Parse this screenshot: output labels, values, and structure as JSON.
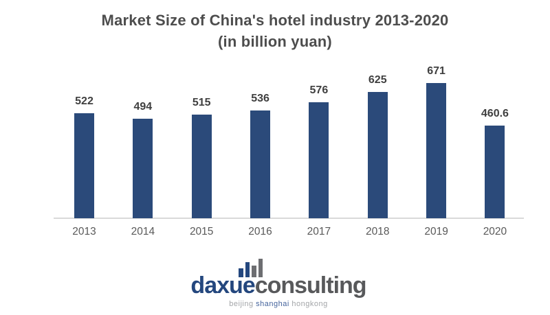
{
  "title": {
    "line1": "Market Size of China's hotel industry 2013-2020",
    "line2": "(in billion yuan)"
  },
  "chart_data": {
    "type": "bar",
    "title": "Market Size of China's hotel industry 2013-2020",
    "subtitle": "(in billion yuan)",
    "categories": [
      "2013",
      "2014",
      "2015",
      "2016",
      "2017",
      "2018",
      "2019",
      "2020"
    ],
    "values": [
      522,
      494,
      515,
      536,
      576,
      625,
      671,
      460.6
    ],
    "value_labels": [
      "522",
      "494",
      "515",
      "536",
      "576",
      "625",
      "671",
      "460.6"
    ],
    "xlabel": "",
    "ylabel": "",
    "ylim": [
      0,
      700
    ],
    "grid": false,
    "legend": "none",
    "data_labels": "above bars",
    "bar_color": "#2B4A7A",
    "axis_line_color": "#D9D9D9",
    "label_color": "#3F3F3F",
    "tick_color": "#595959"
  },
  "logo": {
    "icon": "bar-chart-icon",
    "name_part1": "daxue",
    "name_part2": "consulting",
    "tagline": {
      "city1": "beijing",
      "city2": "shanghai",
      "city3": "hongkong"
    },
    "colors": {
      "blue": "#24477E",
      "gray": "#58595B",
      "icon_blue": "#24477E",
      "icon_gray": "#6D6E71",
      "tagline_gray": "#A3A5A8",
      "tagline_blue": "#44639C"
    }
  }
}
